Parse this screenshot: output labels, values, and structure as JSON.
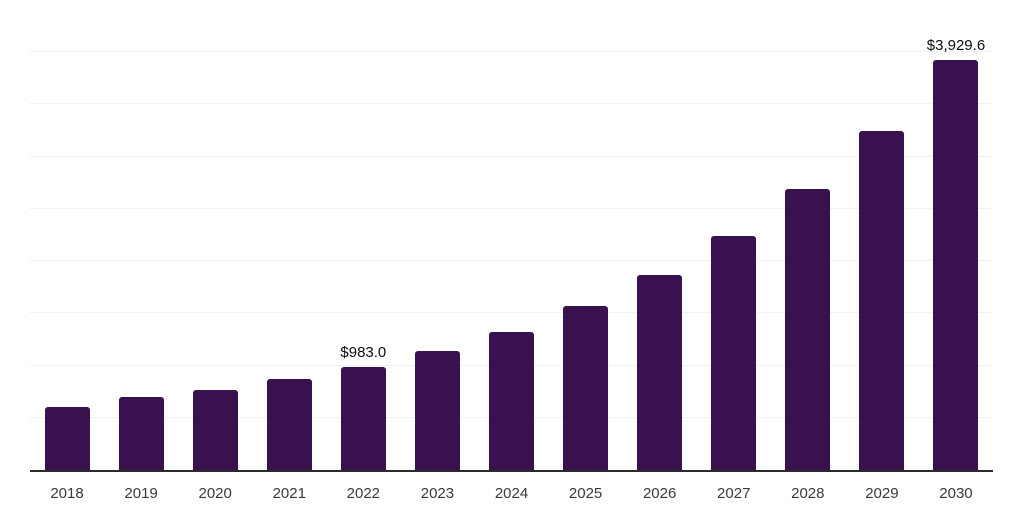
{
  "chart_data": {
    "type": "bar",
    "title": "",
    "xlabel": "",
    "ylabel": "",
    "categories": [
      "2018",
      "2019",
      "2020",
      "2021",
      "2022",
      "2023",
      "2024",
      "2025",
      "2026",
      "2027",
      "2028",
      "2029",
      "2030"
    ],
    "values": [
      605,
      700,
      765,
      870,
      983.0,
      1135,
      1325,
      1575,
      1865,
      2240,
      2695,
      3250,
      3929.6
    ],
    "data_labels": [
      null,
      null,
      null,
      null,
      "$983.0",
      null,
      null,
      null,
      null,
      null,
      null,
      null,
      "$3,929.6"
    ],
    "ylim": [
      0,
      4500
    ],
    "gridline_interval": 500,
    "grid": true,
    "legend": false,
    "colors": {
      "bar": "#38114E",
      "gridline": "#f0f0f0",
      "axis_line": "#2b2b2b",
      "data_label_text": "#0d0d0d",
      "tick_label_text": "#3a3a3a",
      "background": "#ffffff"
    }
  }
}
